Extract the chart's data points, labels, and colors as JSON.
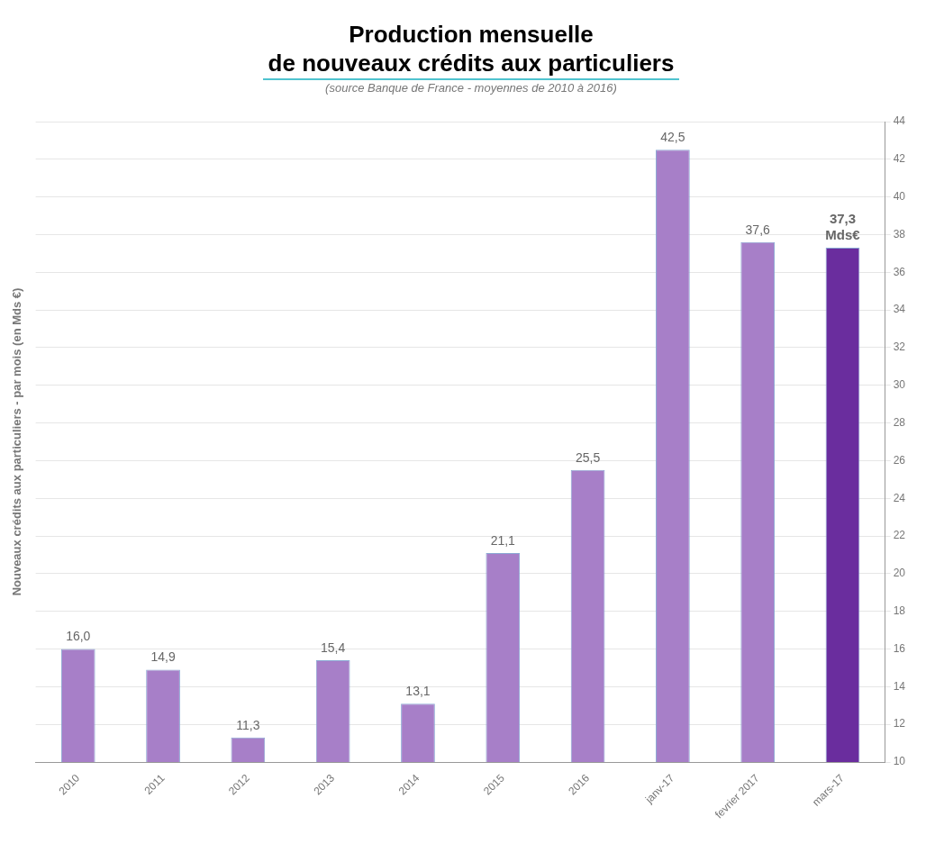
{
  "chart_data": {
    "type": "bar",
    "title": "Production mensuelle\nde nouveaux crédits aux particuliers",
    "subtitle": "(source Banque de France - moyennes de 2010 à 2016)",
    "ylabel": "Nouveaux crédits aux particuliers - par mois (en Mds €)",
    "categories": [
      "2010",
      "2011",
      "2012",
      "2013",
      "2014",
      "2015",
      "2016",
      "janv-17",
      "fevrier 2017",
      "mars-17"
    ],
    "values": [
      16.0,
      14.9,
      11.3,
      15.4,
      13.1,
      21.1,
      25.5,
      42.5,
      37.6,
      37.3
    ],
    "colors": [
      "#a77fc8",
      "#a77fc8",
      "#a77fc8",
      "#a77fc8",
      "#a77fc8",
      "#a77fc8",
      "#a77fc8",
      "#a77fc8",
      "#a77fc8",
      "#6a2d9e"
    ],
    "value_labels": [
      "16,0",
      "14,9",
      "11,3",
      "15,4",
      "13,1",
      "21,1",
      "25,5",
      "42,5",
      "37,6",
      "37,3 Mds€"
    ],
    "ylim": [
      10,
      44
    ],
    "yticks": [
      10,
      12,
      14,
      16,
      18,
      20,
      22,
      24,
      26,
      28,
      30,
      32,
      34,
      36,
      38,
      40,
      42,
      44
    ],
    "grid": "y",
    "legend": false
  }
}
